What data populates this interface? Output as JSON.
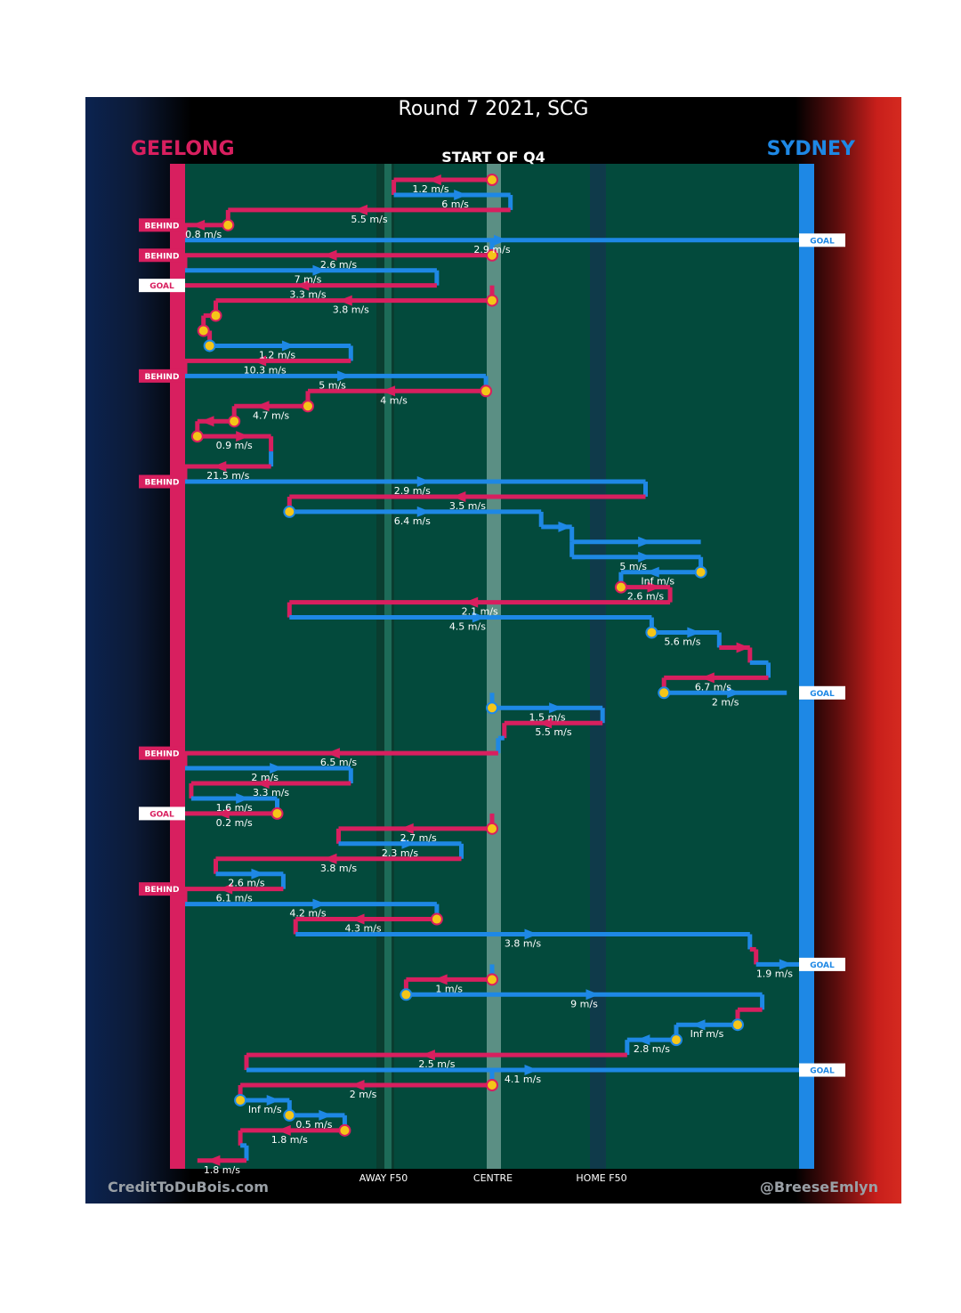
{
  "title": "Round 7 2021, SCG",
  "subtitle": "START OF Q4",
  "teams": {
    "left": "GEELONG",
    "right": "SYDNEY"
  },
  "credits": {
    "left": "CreditToDuBois.com",
    "right": "@BreeseEmlyn"
  },
  "colors": {
    "geelong": "#d81f5f",
    "sydney": "#1e88e5",
    "field": "#034a3c",
    "possession": "#f5c518"
  },
  "chart_data": {
    "type": "line",
    "title": "Round 7 2021, SCG",
    "subtitle": "START OF Q4",
    "xlabel": "",
    "ylabel": "",
    "x_ticks": [
      "AWAY F50",
      "CENTRE",
      "HOME F50"
    ],
    "series": [
      {
        "name": "GEELONG",
        "color": "#d81f5f"
      },
      {
        "name": "SYDNEY",
        "color": "#1e88e5"
      }
    ],
    "score_events": [
      {
        "label": "BEHIND",
        "team": "GEELONG",
        "row": 4
      },
      {
        "label": "GOAL",
        "team": "SYDNEY",
        "row": 5
      },
      {
        "label": "BEHIND",
        "team": "GEELONG",
        "row": 6
      },
      {
        "label": "GOAL",
        "team": "GEELONG",
        "row": 8
      },
      {
        "label": "BEHIND",
        "team": "GEELONG",
        "row": 14
      },
      {
        "label": "BEHIND",
        "team": "GEELONG",
        "row": 21
      },
      {
        "label": "GOAL",
        "team": "SYDNEY",
        "row": 35
      },
      {
        "label": "BEHIND",
        "team": "GEELONG",
        "row": 39
      },
      {
        "label": "GOAL",
        "team": "GEELONG",
        "row": 43
      },
      {
        "label": "BEHIND",
        "team": "GEELONG",
        "row": 48
      },
      {
        "label": "GOAL",
        "team": "SYDNEY",
        "row": 53
      },
      {
        "label": "GOAL",
        "team": "SYDNEY",
        "row": 60
      }
    ],
    "segments": [
      {
        "team": "GEELONG",
        "speed": "1.2 m/s",
        "row": 1,
        "x0": 0.5,
        "x1": 0.34,
        "start": true,
        "label_x": 0.4
      },
      {
        "team": "SYDNEY",
        "speed": "6 m/s",
        "row": 2,
        "x0": 0.34,
        "x1": 0.53,
        "label_x": 0.44
      },
      {
        "team": "GEELONG",
        "speed": "5.5 m/s",
        "row": 3,
        "x0": 0.53,
        "x1": 0.07,
        "label_x": 0.3
      },
      {
        "team": "GEELONG",
        "speed": "0.8 m/s",
        "row": 4,
        "x0": 0.07,
        "x1": 0.0,
        "start": true,
        "label_x": 0.03
      },
      {
        "team": "SYDNEY",
        "speed": "2.9 m/s",
        "row": 5,
        "x0": 0.0,
        "x1": 1.0,
        "label_x": 0.5
      },
      {
        "team": "GEELONG",
        "speed": "2.6 m/s",
        "row": 6,
        "x0": 0.5,
        "x1": 0.0,
        "start": true,
        "label_x": 0.25
      },
      {
        "team": "SYDNEY",
        "speed": "7 m/s",
        "row": 7,
        "x0": 0.0,
        "x1": 0.41,
        "label_x": 0.2
      },
      {
        "team": "GEELONG",
        "speed": "3.3 m/s",
        "row": 8,
        "x0": 0.41,
        "x1": 0.0,
        "label_x": 0.2
      },
      {
        "team": "GEELONG",
        "speed": "3.8 m/s",
        "row": 9,
        "x0": 0.5,
        "x1": 0.05,
        "start": true,
        "label_x": 0.27
      },
      {
        "team": "GEELONG",
        "speed": "",
        "row": 10,
        "x0": 0.05,
        "x1": 0.03,
        "start": true,
        "label_x": 0.04
      },
      {
        "team": "GEELONG",
        "speed": "",
        "row": 11,
        "x0": 0.03,
        "x1": 0.03,
        "start": true,
        "label_x": 0.03
      },
      {
        "team": "SYDNEY",
        "speed": "1.2 m/s",
        "row": 12,
        "x0": 0.04,
        "x1": 0.27,
        "start": true,
        "label_x": 0.15
      },
      {
        "team": "GEELONG",
        "speed": "10.3 m/s",
        "row": 13,
        "x0": 0.27,
        "x1": 0.0,
        "label_x": 0.13
      },
      {
        "team": "SYDNEY",
        "speed": "5 m/s",
        "row": 14,
        "x0": 0.0,
        "x1": 0.49,
        "label_x": 0.24
      },
      {
        "team": "GEELONG",
        "speed": "4 m/s",
        "row": 15,
        "x0": 0.49,
        "x1": 0.2,
        "start": true,
        "label_x": 0.34
      },
      {
        "team": "GEELONG",
        "speed": "4.7 m/s",
        "row": 16,
        "x0": 0.2,
        "x1": 0.08,
        "start": true,
        "label_x": 0.14
      },
      {
        "team": "GEELONG",
        "speed": "",
        "row": 17,
        "x0": 0.08,
        "x1": 0.02,
        "start": true,
        "label_x": 0.05
      },
      {
        "team": "GEELONG",
        "speed": "0.9 m/s",
        "row": 18,
        "x0": 0.02,
        "x1": 0.14,
        "start": true,
        "label_x": 0.08
      },
      {
        "team": "SYDNEY",
        "speed": "",
        "row": 19,
        "x0": 0.14,
        "x1": 0.14,
        "label_x": 0.14
      },
      {
        "team": "GEELONG",
        "speed": "21.5 m/s",
        "row": 20,
        "x0": 0.14,
        "x1": 0.0,
        "label_x": 0.07
      },
      {
        "team": "SYDNEY",
        "speed": "2.9 m/s",
        "row": 21,
        "x0": 0.0,
        "x1": 0.75,
        "label_x": 0.37
      },
      {
        "team": "GEELONG",
        "speed": "3.5 m/s",
        "row": 22,
        "x0": 0.75,
        "x1": 0.17,
        "label_x": 0.46
      },
      {
        "team": "SYDNEY",
        "speed": "6.4 m/s",
        "row": 23,
        "x0": 0.17,
        "x1": 0.58,
        "start": true,
        "label_x": 0.37
      },
      {
        "team": "SYDNEY",
        "speed": "",
        "row": 24,
        "x0": 0.58,
        "x1": 0.63,
        "label_x": 0.6
      },
      {
        "team": "SYDNEY",
        "speed": "",
        "row": 25,
        "x0": 0.63,
        "x1": 0.84,
        "label_x": 0.73
      },
      {
        "team": "SYDNEY",
        "speed": "5 m/s",
        "row": 26,
        "x0": 0.63,
        "x1": 0.84,
        "label_x": 0.73
      },
      {
        "team": "SYDNEY",
        "speed": "Inf m/s",
        "row": 27,
        "x0": 0.84,
        "x1": 0.71,
        "start": true,
        "label_x": 0.77
      },
      {
        "team": "GEELONG",
        "speed": "2.6 m/s",
        "row": 28,
        "x0": 0.71,
        "x1": 0.79,
        "start": true,
        "label_x": 0.75
      },
      {
        "team": "GEELONG",
        "speed": "2.1 m/s",
        "row": 29,
        "x0": 0.79,
        "x1": 0.17,
        "label_x": 0.48
      },
      {
        "team": "SYDNEY",
        "speed": "4.5 m/s",
        "row": 30,
        "x0": 0.17,
        "x1": 0.76,
        "label_x": 0.46
      },
      {
        "team": "SYDNEY",
        "speed": "5.6 m/s",
        "row": 31,
        "x0": 0.76,
        "x1": 0.87,
        "start": true,
        "label_x": 0.81
      },
      {
        "team": "GEELONG",
        "speed": "",
        "row": 32,
        "x0": 0.87,
        "x1": 0.92,
        "label_x": 0.9
      },
      {
        "team": "SYDNEY",
        "speed": "",
        "row": 33,
        "x0": 0.92,
        "x1": 0.95,
        "label_x": 0.93
      },
      {
        "team": "GEELONG",
        "speed": "6.7 m/s",
        "row": 34,
        "x0": 0.95,
        "x1": 0.78,
        "label_x": 0.86
      },
      {
        "team": "SYDNEY",
        "speed": "2 m/s",
        "row": 35,
        "x0": 0.78,
        "x1": 0.98,
        "start": true,
        "label_x": 0.88
      },
      {
        "team": "SYDNEY",
        "speed": "1.5 m/s",
        "row": 36,
        "x0": 0.5,
        "x1": 0.68,
        "start": true,
        "label_x": 0.59
      },
      {
        "team": "GEELONG",
        "speed": "5.5 m/s",
        "row": 37,
        "x0": 0.68,
        "x1": 0.52,
        "label_x": 0.6
      },
      {
        "team": "SYDNEY",
        "speed": "",
        "row": 38,
        "x0": 0.52,
        "x1": 0.51,
        "label_x": 0.51
      },
      {
        "team": "GEELONG",
        "speed": "6.5 m/s",
        "row": 39,
        "x0": 0.51,
        "x1": 0.0,
        "label_x": 0.25
      },
      {
        "team": "SYDNEY",
        "speed": "2 m/s",
        "row": 40,
        "x0": 0.0,
        "x1": 0.27,
        "label_x": 0.13
      },
      {
        "team": "GEELONG",
        "speed": "3.3 m/s",
        "row": 41,
        "x0": 0.27,
        "x1": 0.01,
        "label_x": 0.14
      },
      {
        "team": "SYDNEY",
        "speed": "1.6 m/s",
        "row": 42,
        "x0": 0.01,
        "x1": 0.15,
        "label_x": 0.08
      },
      {
        "team": "GEELONG",
        "speed": "0.2 m/s",
        "row": 43,
        "x0": 0.15,
        "x1": 0.0,
        "start": true,
        "label_x": 0.08
      },
      {
        "team": "GEELONG",
        "speed": "2.7 m/s",
        "row": 44,
        "x0": 0.5,
        "x1": 0.25,
        "start": true,
        "label_x": 0.38
      },
      {
        "team": "SYDNEY",
        "speed": "2.3 m/s",
        "row": 45,
        "x0": 0.25,
        "x1": 0.45,
        "label_x": 0.35
      },
      {
        "team": "GEELONG",
        "speed": "3.8 m/s",
        "row": 46,
        "x0": 0.45,
        "x1": 0.05,
        "label_x": 0.25
      },
      {
        "team": "SYDNEY",
        "speed": "2.6 m/s",
        "row": 47,
        "x0": 0.05,
        "x1": 0.16,
        "label_x": 0.1
      },
      {
        "team": "GEELONG",
        "speed": "6.1 m/s",
        "row": 48,
        "x0": 0.16,
        "x1": 0.0,
        "label_x": 0.08
      },
      {
        "team": "SYDNEY",
        "speed": "4.2 m/s",
        "row": 49,
        "x0": 0.0,
        "x1": 0.41,
        "label_x": 0.2
      },
      {
        "team": "GEELONG",
        "speed": "4.3 m/s",
        "row": 50,
        "x0": 0.41,
        "x1": 0.18,
        "start": true,
        "label_x": 0.29
      },
      {
        "team": "SYDNEY",
        "speed": "3.8 m/s",
        "row": 51,
        "x0": 0.18,
        "x1": 0.92,
        "label_x": 0.55
      },
      {
        "team": "GEELONG",
        "speed": "",
        "row": 52,
        "x0": 0.92,
        "x1": 0.93,
        "label_x": 0.92
      },
      {
        "team": "SYDNEY",
        "speed": "1.9 m/s",
        "row": 53,
        "x0": 0.93,
        "x1": 1.0,
        "label_x": 0.96
      },
      {
        "team": "GEELONG",
        "speed": "1 m/s",
        "row": 54,
        "x0": 0.5,
        "x1": 0.36,
        "start": true,
        "label_x": 0.43
      },
      {
        "team": "SYDNEY",
        "speed": "9 m/s",
        "row": 55,
        "x0": 0.36,
        "x1": 0.94,
        "start": true,
        "label_x": 0.65
      },
      {
        "team": "GEELONG",
        "speed": "",
        "row": 56,
        "x0": 0.94,
        "x1": 0.9,
        "label_x": 0.92
      },
      {
        "team": "SYDNEY",
        "speed": "Inf m/s",
        "row": 57,
        "x0": 0.9,
        "x1": 0.8,
        "start": true,
        "label_x": 0.85
      },
      {
        "team": "SYDNEY",
        "speed": "2.8 m/s",
        "row": 58,
        "x0": 0.8,
        "x1": 0.72,
        "start": true,
        "label_x": 0.76
      },
      {
        "team": "GEELONG",
        "speed": "2.5 m/s",
        "row": 59,
        "x0": 0.72,
        "x1": 0.1,
        "label_x": 0.41
      },
      {
        "team": "SYDNEY",
        "speed": "4.1 m/s",
        "row": 60,
        "x0": 0.1,
        "x1": 1.0,
        "label_x": 0.55
      },
      {
        "team": "GEELONG",
        "speed": "2 m/s",
        "row": 61,
        "x0": 0.5,
        "x1": 0.09,
        "start": true,
        "label_x": 0.29
      },
      {
        "team": "SYDNEY",
        "speed": "Inf m/s",
        "row": 62,
        "x0": 0.09,
        "x1": 0.17,
        "start": true,
        "label_x": 0.13
      },
      {
        "team": "SYDNEY",
        "speed": "0.5 m/s",
        "row": 63,
        "x0": 0.17,
        "x1": 0.26,
        "start": true,
        "label_x": 0.21
      },
      {
        "team": "GEELONG",
        "speed": "1.8 m/s",
        "row": 64,
        "x0": 0.26,
        "x1": 0.09,
        "start": true,
        "label_x": 0.17
      },
      {
        "team": "SYDNEY",
        "speed": "",
        "row": 65,
        "x0": 0.09,
        "x1": 0.1,
        "label_x": 0.09
      },
      {
        "team": "GEELONG",
        "speed": "1.8 m/s",
        "row": 66,
        "x0": 0.1,
        "x1": 0.02,
        "label_x": 0.06
      }
    ]
  }
}
